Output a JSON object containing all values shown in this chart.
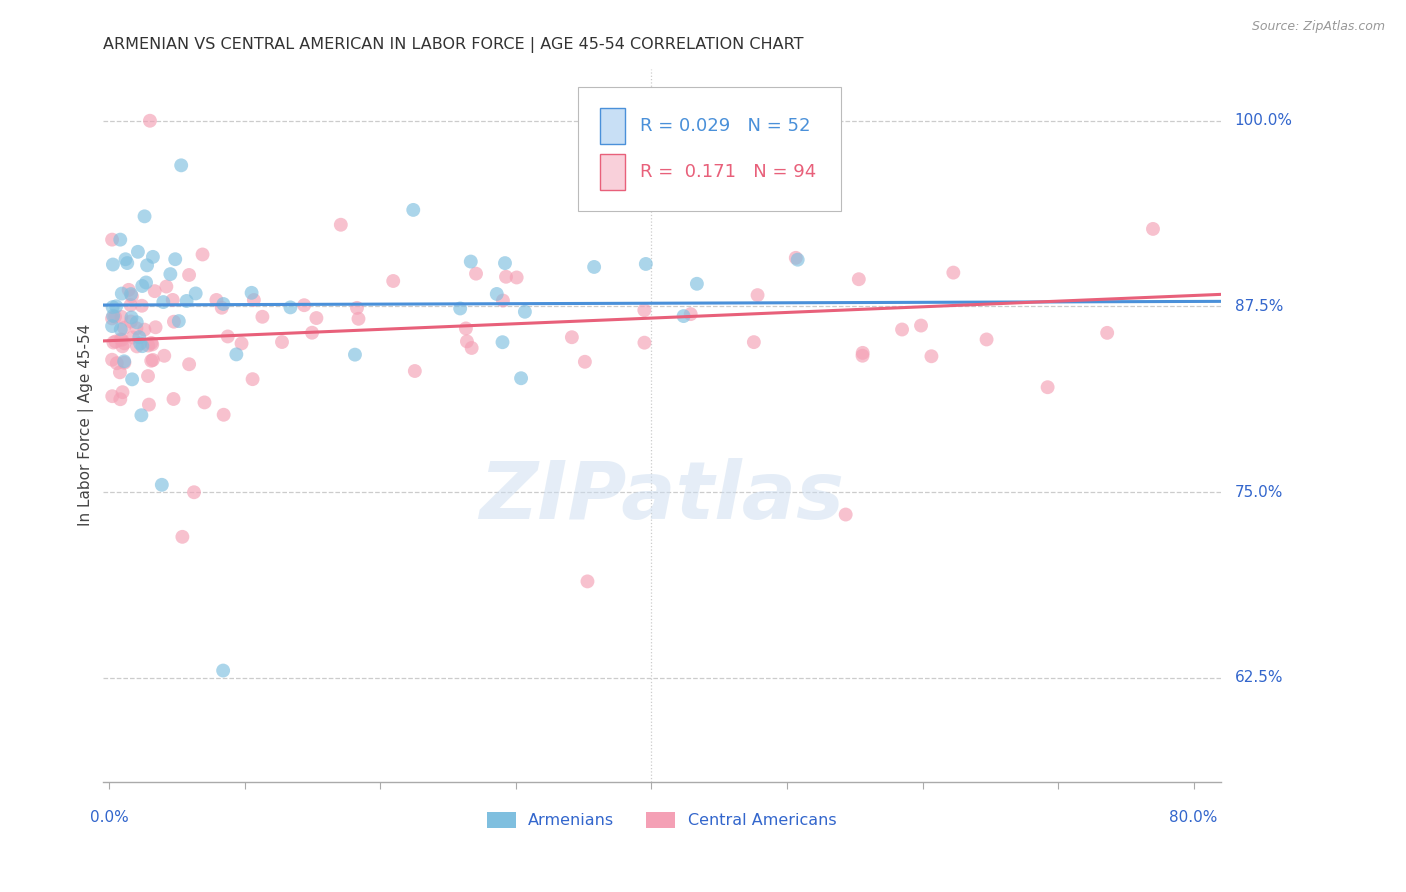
{
  "title": "ARMENIAN VS CENTRAL AMERICAN IN LABOR FORCE | AGE 45-54 CORRELATION CHART",
  "source": "Source: ZipAtlas.com",
  "ylabel": "In Labor Force | Age 45-54",
  "ytick_labels": [
    "62.5%",
    "75.0%",
    "87.5%",
    "100.0%"
  ],
  "ytick_values": [
    0.625,
    0.75,
    0.875,
    1.0
  ],
  "xlim": [
    -0.005,
    0.82
  ],
  "ylim": [
    0.555,
    1.035
  ],
  "blue_color": "#7fbfdf",
  "pink_color": "#f4a0b5",
  "blue_line_color": "#4a90d9",
  "pink_line_color": "#e8607a",
  "axis_label_color": "#3366cc",
  "watermark": "ZIPatlas",
  "blue_R": 0.029,
  "pink_R": 0.171,
  "blue_N": 52,
  "pink_N": 94,
  "grid_color": "#cccccc",
  "blue_intercept": 0.876,
  "blue_slope": 0.003,
  "pink_intercept": 0.852,
  "pink_slope": 0.038
}
